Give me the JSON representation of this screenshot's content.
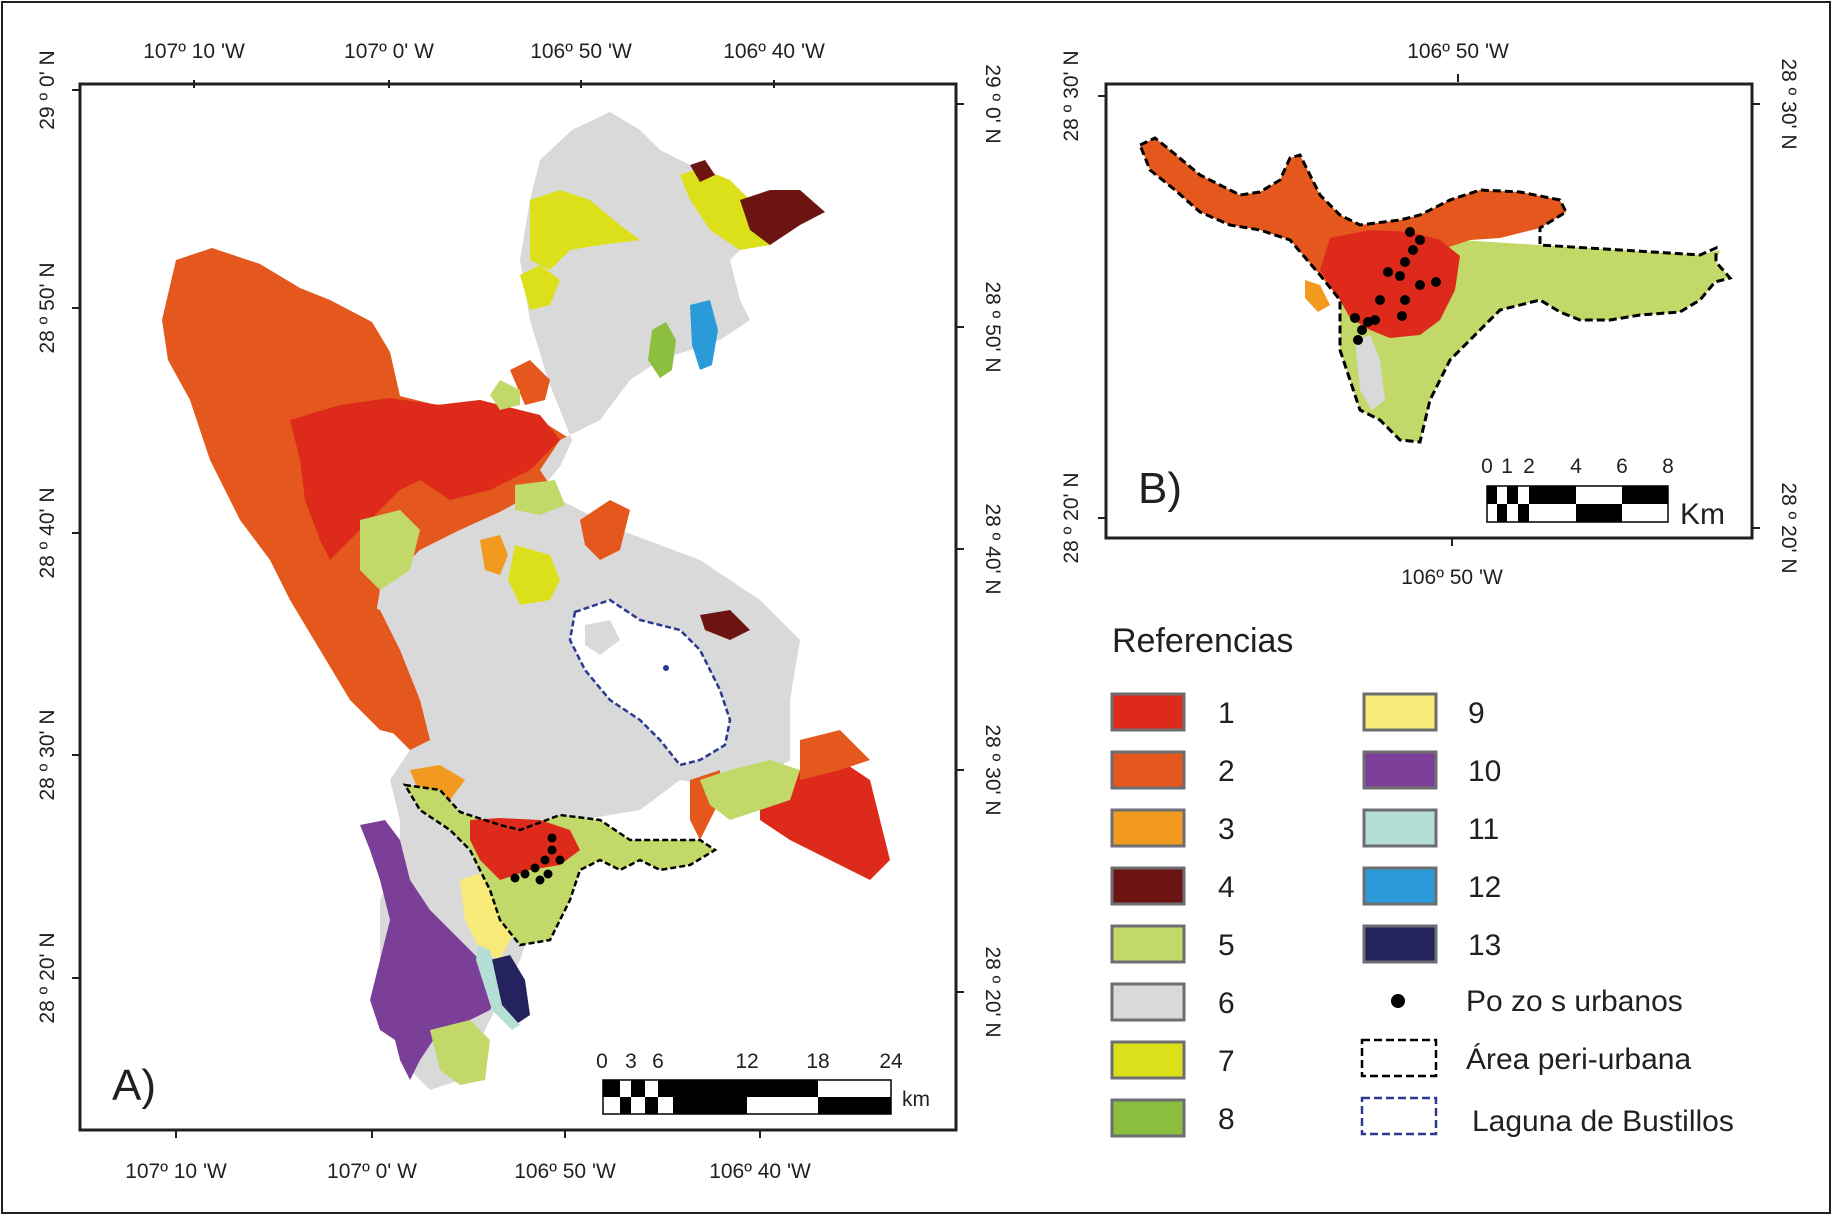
{
  "panel_a": {
    "label": "A)",
    "top_lon_ticks": [
      "107º 10 'W",
      "107º 0' W",
      "106º 50 'W",
      "106º 40 'W"
    ],
    "bottom_lon_ticks": [
      "107º 10 'W",
      "107º 0' W",
      "106º 50 'W",
      "106º 40 'W"
    ],
    "left_lat_ticks": [
      "29 º 0' N",
      "28 º 50' N",
      "28 º 40' N",
      "28 º 30' N",
      "28 º 20' N"
    ],
    "right_lat_ticks": [
      "29 º 0' N",
      "28 º 50' N",
      "28 º 40' N",
      "28 º 30' N",
      "28 º 20' N"
    ],
    "scale_ticks": [
      "0",
      "3",
      "6",
      "12",
      "18",
      "24"
    ],
    "scale_unit": "km"
  },
  "panel_b": {
    "label": "B)",
    "top_lon_ticks": [
      "106º 50 'W"
    ],
    "bottom_lon_ticks": [
      "106º 50 'W"
    ],
    "left_lat_ticks": [
      "28 º 30' N",
      "28 º 20' N"
    ],
    "right_lat_ticks": [
      "28 º 30' N",
      "28 º 20' N"
    ],
    "scale_ticks": [
      "0",
      "1",
      "2",
      "4",
      "6",
      "8"
    ],
    "scale_unit": "Km"
  },
  "legend": {
    "title": "Referencias",
    "items": [
      {
        "label": "1",
        "color": "#dd2a1b"
      },
      {
        "label": "2",
        "color": "#e4581d"
      },
      {
        "label": "3",
        "color": "#f2991f"
      },
      {
        "label": "4",
        "color": "#6b1412"
      },
      {
        "label": "5",
        "color": "#c2d96a"
      },
      {
        "label": "6",
        "color": "#d9d9d9"
      },
      {
        "label": "7",
        "color": "#dbe01a"
      },
      {
        "label": "8",
        "color": "#8cbf3d"
      },
      {
        "label": "9",
        "color": "#f7ea79"
      },
      {
        "label": "10",
        "color": "#7b3f98"
      },
      {
        "label": "11",
        "color": "#b5dfd5"
      },
      {
        "label": "12",
        "color": "#2a9bd8"
      },
      {
        "label": "13",
        "color": "#24235e"
      }
    ],
    "symbols": [
      {
        "label": "Po zo s  urbanos",
        "icon": "well-dot-icon"
      },
      {
        "label": "Área peri-urbana",
        "icon": "black-dashed-box-icon"
      },
      {
        "label": "Laguna de Bustillos",
        "icon": "blue-dashed-box-icon"
      }
    ]
  }
}
